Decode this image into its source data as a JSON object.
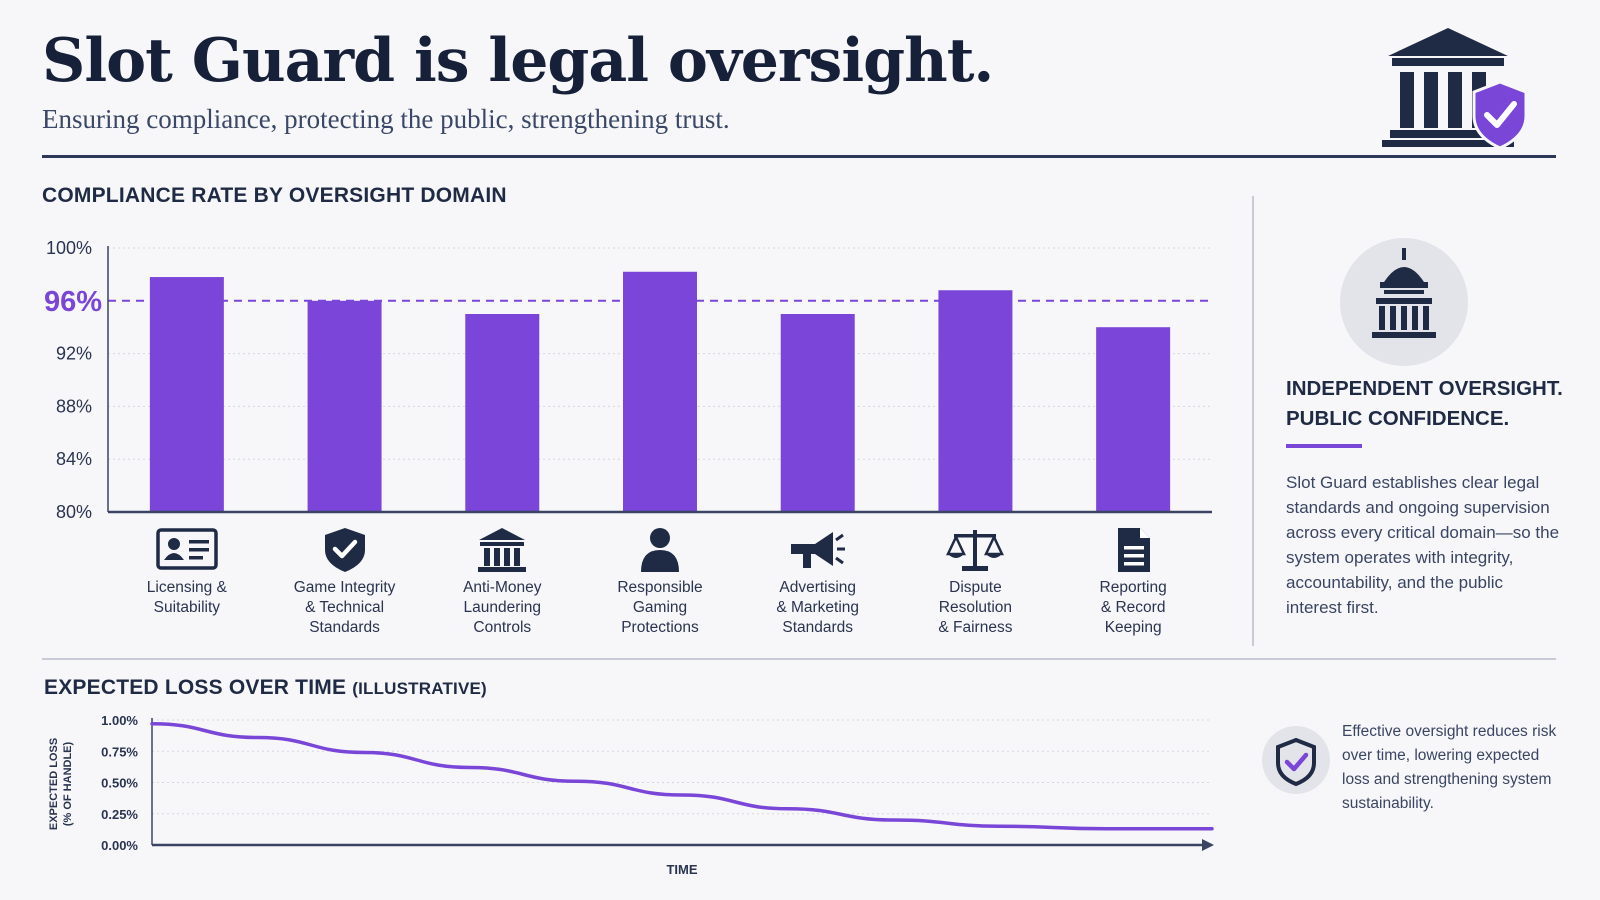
{
  "header": {
    "title": "Slot Guard is legal oversight.",
    "subtitle": "Ensuring compliance, protecting the public, strengthening trust."
  },
  "colors": {
    "accent": "#7a46d8",
    "bar": "#7b45d9",
    "navy": "#1f2a44",
    "background": "#f7f7f9"
  },
  "icons": {
    "logo": "courthouse-shield-icon",
    "seal": "capitol-dome-icon",
    "note": "shield-check-icon"
  },
  "compliance": {
    "section_title": "COMPLIANCE RATE BY OVERSIGHT DOMAIN",
    "categories": [
      {
        "label_lines": [
          "Licensing &",
          "Suitability"
        ],
        "icon": "id-card-icon"
      },
      {
        "label_lines": [
          "Game Integrity",
          "& Technical",
          "Standards"
        ],
        "icon": "shield-check-icon"
      },
      {
        "label_lines": [
          "Anti-Money",
          "Laundering",
          "Controls"
        ],
        "icon": "bank-icon"
      },
      {
        "label_lines": [
          "Responsible",
          "Gaming",
          "Protections"
        ],
        "icon": "person-icon"
      },
      {
        "label_lines": [
          "Advertising",
          "& Marketing",
          "Standards"
        ],
        "icon": "megaphone-icon"
      },
      {
        "label_lines": [
          "Dispute",
          "Resolution",
          "& Fairness"
        ],
        "icon": "scales-icon"
      },
      {
        "label_lines": [
          "Reporting",
          "& Record",
          "Keeping"
        ],
        "icon": "document-icon"
      }
    ]
  },
  "loss": {
    "section_title": "EXPECTED LOSS OVER TIME",
    "section_title_suffix": "(ILLUSTRATIVE)"
  },
  "sidebar": {
    "heading_line1": "INDEPENDENT OVERSIGHT.",
    "heading_line2": "PUBLIC CONFIDENCE.",
    "body": "Slot Guard establishes clear legal standards and ongoing supervision across every critical domain—so the system operates with integrity, accountability, and the public interest first.",
    "note": "Effective oversight reduces risk over time, lowering expected loss and strengthening system sustainability."
  },
  "chart_data": [
    {
      "type": "bar",
      "title": "COMPLIANCE RATE BY OVERSIGHT DOMAIN",
      "categories": [
        "Licensing & Suitability",
        "Game Integrity & Technical Standards",
        "Anti-Money Laundering Controls",
        "Responsible Gaming Protections",
        "Advertising & Marketing Standards",
        "Dispute Resolution & Fairness",
        "Reporting & Record Keeping"
      ],
      "values": [
        97.8,
        96.0,
        95.0,
        98.2,
        95.0,
        96.8,
        94.0
      ],
      "unit": "%",
      "ylim": [
        80,
        100
      ],
      "yticks": [
        "100%",
        "96%",
        "92%",
        "88%",
        "84%",
        "80%"
      ],
      "ytick_values": [
        100,
        96,
        92,
        88,
        84,
        80
      ],
      "reference_line": {
        "value": 96,
        "label": "96%",
        "style": "dashed"
      },
      "grid": true,
      "xlabel": "",
      "ylabel": ""
    },
    {
      "type": "line",
      "title": "EXPECTED LOSS OVER TIME (ILLUSTRATIVE)",
      "xlabel": "TIME",
      "ylabel_lines": [
        "EXPECTED LOSS",
        "(% OF HANDLE)"
      ],
      "x": [
        0,
        1,
        2,
        3,
        4,
        5,
        6,
        7,
        8,
        9,
        10
      ],
      "values": [
        0.97,
        0.86,
        0.74,
        0.62,
        0.51,
        0.4,
        0.29,
        0.2,
        0.15,
        0.13,
        0.13
      ],
      "ylim": [
        0,
        1
      ],
      "yticks": [
        "1.00%",
        "0.75%",
        "0.50%",
        "0.25%",
        "0.00%"
      ],
      "ytick_values": [
        1.0,
        0.75,
        0.5,
        0.25,
        0.0
      ],
      "grid": true
    }
  ]
}
